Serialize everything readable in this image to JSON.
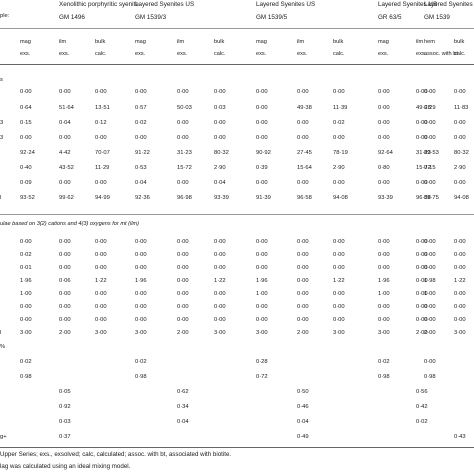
{
  "header": {
    "row_label": "ple:",
    "groups": [
      {
        "name": "Xenolithic porphyritic syenite",
        "sample": "GM 1496"
      },
      {
        "name": "Layered Syenites US",
        "sample": "GM 1539/3"
      },
      {
        "name": "Layered Syenites US",
        "sample": "GM 1539/5"
      },
      {
        "name": "Layered Syenites US",
        "sample": "GR 63/5"
      },
      {
        "name": "Layered Syenites US",
        "sample": "GM 1539"
      }
    ],
    "columns": [
      [
        "mag",
        "exs."
      ],
      [
        "ilm",
        "exs."
      ],
      [
        "bulk",
        "calc."
      ],
      [
        "mag",
        "exs."
      ],
      [
        "ilm",
        "exs."
      ],
      [
        "bulk",
        "calc."
      ],
      [
        "mag",
        "exs."
      ],
      [
        "ilm",
        "exs."
      ],
      [
        "bulk",
        "calc."
      ],
      [
        "mag",
        "exs."
      ],
      [
        "ilm",
        "exs."
      ],
      [
        "bulk",
        "calc."
      ],
      [
        "hem",
        "assoc. with bt"
      ]
    ]
  },
  "rows_top": [
    {
      "label": "s",
      "cells": [
        "",
        "",
        "",
        "",
        "",
        "",
        "",
        "",
        "",
        "",
        "",
        "",
        ""
      ]
    },
    {
      "label": "",
      "cells": [
        "0·00",
        "0·00",
        "0·00",
        "0·00",
        "0·00",
        "0·00",
        "0·00",
        "0·00",
        "0·00",
        "0·00",
        "0·00",
        "0·00",
        "0·00"
      ]
    },
    {
      "label": "",
      "cells": [
        "0·64",
        "51·64",
        "13·51",
        "0·57",
        "50·03",
        "0·03",
        "0·00",
        "49·38",
        "11·39",
        "0·00",
        "49·28",
        "11·83",
        "0·29"
      ]
    },
    {
      "label": "3",
      "cells": [
        "0·15",
        "0·04",
        "0·12",
        "0·02",
        "0·00",
        "0·00",
        "0·00",
        "0·00",
        "0·02",
        "0·00",
        "0·00",
        "0·00",
        "0·00"
      ]
    },
    {
      "label": "3",
      "cells": [
        "0·00",
        "0·00",
        "0·00",
        "0·00",
        "0·00",
        "0·00",
        "0·00",
        "0·00",
        "0·00",
        "0·00",
        "0·00",
        "0·00",
        "0·00"
      ]
    },
    {
      "label": "",
      "cells": [
        "92·24",
        "4·42",
        "70·07",
        "91·22",
        "31·23",
        "80·32",
        "90·92",
        "27·45",
        "78·19",
        "92·64",
        "31·23",
        "80·32",
        "89·53"
      ]
    },
    {
      "label": "",
      "cells": [
        "0·40",
        "43·52",
        "11·29",
        "0·53",
        "15·72",
        "2·90",
        "0·39",
        "15·64",
        "2·90",
        "0·80",
        "15·72",
        "2·90",
        "0·15"
      ]
    },
    {
      "label": "",
      "cells": [
        "0·09",
        "0·00",
        "0·00",
        "0·04",
        "0·00",
        "0·04",
        "0·00",
        "0·00",
        "0·00",
        "0·00",
        "0·00",
        "0·00",
        "0·00"
      ]
    },
    {
      "label": "l",
      "cells": [
        "93·52",
        "99·62",
        "94·99",
        "92·36",
        "96·98",
        "93·39",
        "91·39",
        "96·58",
        "94·08",
        "93·39",
        "96·58",
        "94·08",
        "89·75"
      ]
    }
  ],
  "formula_note": "ulae based on 3(2) cations and 4(3) oxygens for mt (ilm)",
  "rows_bottom": [
    {
      "label": "",
      "cells": [
        "0·00",
        "0·00",
        "0·00",
        "0·00",
        "0·00",
        "0·00",
        "0·00",
        "0·00",
        "0·00",
        "0·00",
        "0·00",
        "0·00",
        "0·00"
      ]
    },
    {
      "label": "",
      "cells": [
        "0·02",
        "0·00",
        "0·00",
        "0·00",
        "0·00",
        "0·00",
        "0·00",
        "0·00",
        "0·00",
        "0·00",
        "0·00",
        "0·00",
        "0·00"
      ]
    },
    {
      "label": "",
      "cells": [
        "0·01",
        "0·00",
        "0·00",
        "0·00",
        "0·00",
        "0·00",
        "0·00",
        "0·00",
        "0·00",
        "0·00",
        "0·00",
        "0·00",
        "0·00"
      ]
    },
    {
      "label": "",
      "cells": [
        "1·96",
        "0·06",
        "1·22",
        "1·96",
        "0·00",
        "1·22",
        "1·96",
        "0·00",
        "1·22",
        "1·96",
        "0·00",
        "1·22",
        "1·98"
      ]
    },
    {
      "label": "",
      "cells": [
        "1·00",
        "0·00",
        "0·00",
        "0·00",
        "0·00",
        "0·00",
        "1·00",
        "0·00",
        "0·00",
        "1·00",
        "0·00",
        "0·00",
        "1·00"
      ]
    },
    {
      "label": "",
      "cells": [
        "0·00",
        "0·00",
        "0·00",
        "0·00",
        "0·00",
        "0·00",
        "0·00",
        "0·00",
        "0·00",
        "0·00",
        "0·00",
        "0·00",
        "0·00"
      ]
    },
    {
      "label": "",
      "cells": [
        "0·00",
        "0·00",
        "0·00",
        "0·00",
        "0·00",
        "0·00",
        "0·00",
        "0·00",
        "0·00",
        "0·00",
        "0·00",
        "0·00",
        "0·00"
      ]
    },
    {
      "label": "l",
      "cells": [
        "3·00",
        "2·00",
        "3·00",
        "3·00",
        "2·00",
        "3·00",
        "3·00",
        "2·00",
        "3·00",
        "3·00",
        "2·00",
        "3·00",
        "2·00"
      ]
    },
    {
      "label": "%",
      "cells": [
        "",
        "",
        "",
        "",
        "",
        "",
        "",
        "",
        "",
        "",
        "",
        "",
        ""
      ]
    },
    {
      "label": "",
      "cells": [
        "0·02",
        "",
        "",
        "0·02",
        "",
        "",
        "0·28",
        "",
        "",
        "0·02",
        "",
        "",
        "0·00"
      ]
    },
    {
      "label": "",
      "cells": [
        "0·98",
        "",
        "",
        "0·98",
        "",
        "",
        "0·72",
        "",
        "",
        "0·98",
        "",
        "",
        "0·98"
      ]
    },
    {
      "label": "",
      "cells": [
        "",
        "0·05",
        "",
        "",
        "0·62",
        "",
        "",
        "0·50",
        "",
        "",
        "0·56",
        "",
        ""
      ]
    },
    {
      "label": "",
      "cells": [
        "",
        "0·92",
        "",
        "",
        "0·34",
        "",
        "",
        "0·46",
        "",
        "",
        "0·42",
        "",
        ""
      ]
    },
    {
      "label": "",
      "cells": [
        "",
        "0·03",
        "",
        "",
        "0·04",
        "",
        "",
        "0·04",
        "",
        "",
        "0·02",
        "",
        ""
      ]
    },
    {
      "label": "g+",
      "cells": [
        "",
        "0·37",
        "",
        "",
        "",
        "",
        "",
        "0·49",
        "",
        "",
        "",
        "0·43",
        ""
      ]
    }
  ],
  "footnotes": [
    "Upper Series; exs., exsolved; calc, calculated; assoc. with bt, associated with biotite.",
    "lag was calculated using an ideal mixing model."
  ]
}
